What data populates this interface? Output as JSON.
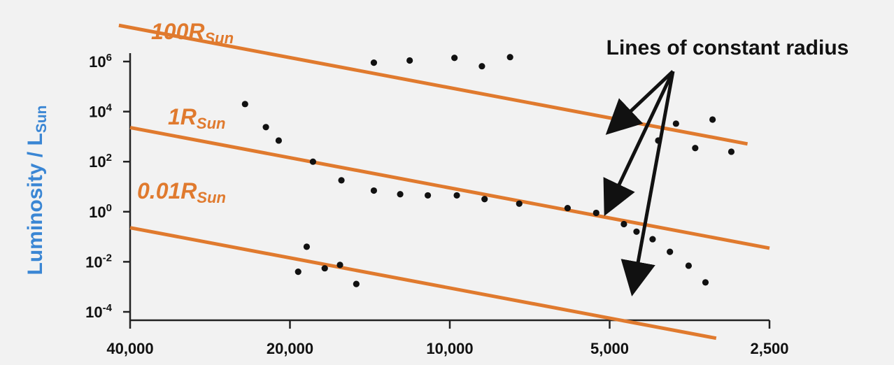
{
  "chart_data": {
    "type": "scatter",
    "title": "",
    "xlabel": "",
    "ylabel": {
      "main": "Luminosity / L",
      "sub": "Sun"
    },
    "x_scale": "log-reversed",
    "y_scale": "log",
    "xlim": [
      40000,
      2500
    ],
    "ylim": [
      0.0001,
      1000000
    ],
    "x_ticks": [
      {
        "value": 40000,
        "label": "40,000"
      },
      {
        "value": 20000,
        "label": "20,000"
      },
      {
        "value": 10000,
        "label": "10,000"
      },
      {
        "value": 5000,
        "label": "5,000"
      },
      {
        "value": 2500,
        "label": "2,500"
      }
    ],
    "y_ticks": [
      {
        "value": 1000000,
        "base": "10",
        "exp": "6"
      },
      {
        "value": 10000,
        "base": "10",
        "exp": "4"
      },
      {
        "value": 100,
        "base": "10",
        "exp": "2"
      },
      {
        "value": 1,
        "base": "10",
        "exp": "0"
      },
      {
        "value": 0.01,
        "base": "10",
        "exp": "-2"
      },
      {
        "value": 0.0001,
        "base": "10",
        "exp": "-4"
      }
    ],
    "points": [
      {
        "x": 24300,
        "y": 20000
      },
      {
        "x": 22200,
        "y": 2400
      },
      {
        "x": 21000,
        "y": 700
      },
      {
        "x": 18100,
        "y": 100
      },
      {
        "x": 16000,
        "y": 18
      },
      {
        "x": 13900,
        "y": 7
      },
      {
        "x": 12400,
        "y": 5
      },
      {
        "x": 11000,
        "y": 4.5
      },
      {
        "x": 9700,
        "y": 4.5
      },
      {
        "x": 8600,
        "y": 3.2
      },
      {
        "x": 7400,
        "y": 2.1
      },
      {
        "x": 6000,
        "y": 1.4
      },
      {
        "x": 5300,
        "y": 0.9
      },
      {
        "x": 4700,
        "y": 0.32
      },
      {
        "x": 4450,
        "y": 0.16
      },
      {
        "x": 4150,
        "y": 0.08
      },
      {
        "x": 3850,
        "y": 0.025
      },
      {
        "x": 3550,
        "y": 0.007
      },
      {
        "x": 3300,
        "y": 0.0015
      },
      {
        "x": 18600,
        "y": 0.04
      },
      {
        "x": 19300,
        "y": 0.004
      },
      {
        "x": 17200,
        "y": 0.0055
      },
      {
        "x": 16100,
        "y": 0.0075
      },
      {
        "x": 15000,
        "y": 0.0013
      },
      {
        "x": 13900,
        "y": 900000
      },
      {
        "x": 11900,
        "y": 1100000
      },
      {
        "x": 9800,
        "y": 1400000
      },
      {
        "x": 8700,
        "y": 650000
      },
      {
        "x": 7700,
        "y": 1500000
      },
      {
        "x": 4050,
        "y": 700
      },
      {
        "x": 3750,
        "y": 3300
      },
      {
        "x": 3450,
        "y": 350
      },
      {
        "x": 3200,
        "y": 4800
      },
      {
        "x": 2950,
        "y": 250
      }
    ],
    "radius_lines": [
      {
        "label": "100R",
        "sub": "Sun",
        "radius_rsun": 100
      },
      {
        "label": "1R",
        "sub": "Sun",
        "radius_rsun": 1
      },
      {
        "label": "0.01R",
        "sub": "Sun",
        "radius_rsun": 0.01
      }
    ],
    "annotation": "Lines of constant radius",
    "colors": {
      "background": "#f2f2f2",
      "points": "#111111",
      "radius_lines": "#e07a2e",
      "ylabel": "#3a86d4",
      "axes": "#222222"
    }
  }
}
